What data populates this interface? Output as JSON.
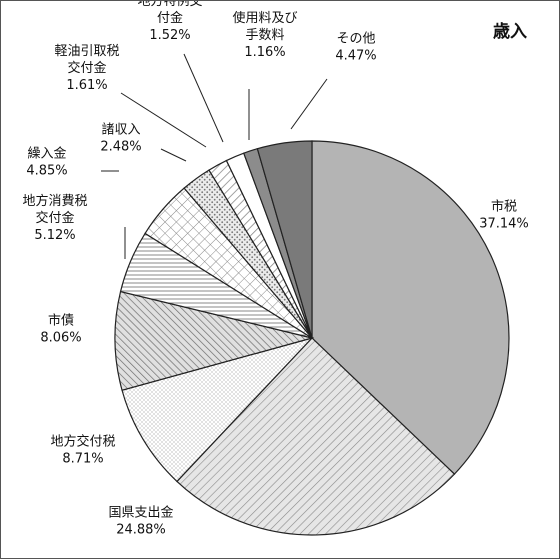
{
  "chart_data": {
    "type": "pie",
    "title": "歳入",
    "slices": [
      {
        "name": "市税",
        "lines": [
          "市税"
        ],
        "value": 37.14,
        "pct_label": "37.14%",
        "fill": "solid",
        "color": "#b4b4b4"
      },
      {
        "name": "国県支出金",
        "lines": [
          "国県支出金"
        ],
        "value": 24.88,
        "pct_label": "24.88%",
        "fill": "diag-fine",
        "color": "#d4d4d4"
      },
      {
        "name": "地方交付税",
        "lines": [
          "地方交付税"
        ],
        "value": 8.71,
        "pct_label": "8.71%",
        "fill": "dots-fine",
        "color": "#f2f2f2"
      },
      {
        "name": "市債",
        "lines": [
          "市債"
        ],
        "value": 8.06,
        "pct_label": "8.06%",
        "fill": "diag-dense",
        "color": "#d0d0d0"
      },
      {
        "name": "地方消費税交付金",
        "lines": [
          "地方消費税",
          "交付金"
        ],
        "value": 5.12,
        "pct_label": "5.12%",
        "fill": "hlines",
        "color": "#ffffff"
      },
      {
        "name": "繰入金",
        "lines": [
          "繰入金"
        ],
        "value": 4.85,
        "pct_label": "4.85%",
        "fill": "crosshatch",
        "color": "#ffffff"
      },
      {
        "name": "諸収入",
        "lines": [
          "諸収入"
        ],
        "value": 2.48,
        "pct_label": "2.48%",
        "fill": "dots-coarse",
        "color": "#e6e6e6"
      },
      {
        "name": "軽油引取税交付金",
        "lines": [
          "軽油引取税",
          "交付金"
        ],
        "value": 1.61,
        "pct_label": "1.61%",
        "fill": "diag-wide",
        "color": "#ffffff"
      },
      {
        "name": "地方特例交付金",
        "lines": [
          "地方特例交",
          "付金"
        ],
        "value": 1.52,
        "pct_label": "1.52%",
        "fill": "solid",
        "color": "#ffffff"
      },
      {
        "name": "使用料及び手数料",
        "lines": [
          "使用料及び",
          "手数料"
        ],
        "value": 1.16,
        "pct_label": "1.16%",
        "fill": "solid",
        "color": "#8c8c8c"
      },
      {
        "name": "その他",
        "lines": [
          "その他"
        ],
        "value": 4.47,
        "pct_label": "4.47%",
        "fill": "solid",
        "color": "#7a7a7a"
      }
    ],
    "start": "12 o'clock",
    "direction": "clockwise",
    "legend": "none (labels beside slices)"
  }
}
